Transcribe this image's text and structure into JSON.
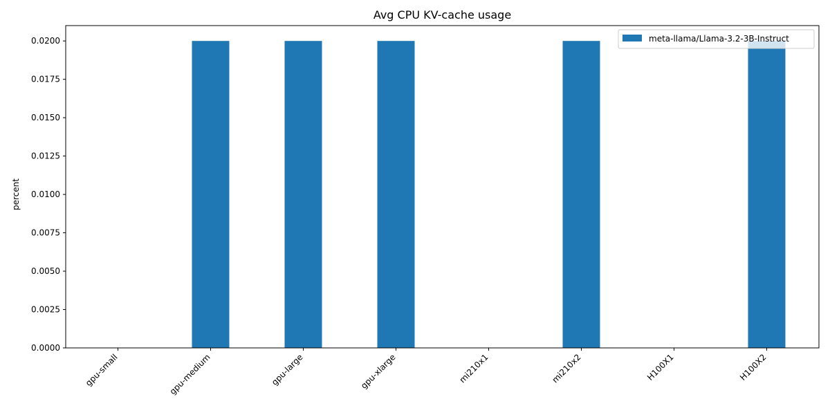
{
  "chart_data": {
    "type": "bar",
    "title": "Avg CPU KV-cache usage",
    "xlabel": "",
    "ylabel": "percent",
    "categories": [
      "gpu-small",
      "gpu-medium",
      "gpu-large",
      "gpu-xlarge",
      "mi210x1",
      "mi210x2",
      "H100X1",
      "H100X2"
    ],
    "series": [
      {
        "name": "meta-llama/Llama-3.2-3B-Instruct",
        "color": "#1f77b4",
        "values": [
          0,
          0.02,
          0.02,
          0.02,
          0,
          0.02,
          0,
          0.02
        ]
      }
    ],
    "ylim": [
      0,
      0.021
    ],
    "yticks": [
      "0.0000",
      "0.0025",
      "0.0050",
      "0.0075",
      "0.0100",
      "0.0125",
      "0.0150",
      "0.0175",
      "0.0200"
    ],
    "grid": false,
    "legend_position": "top-right"
  }
}
